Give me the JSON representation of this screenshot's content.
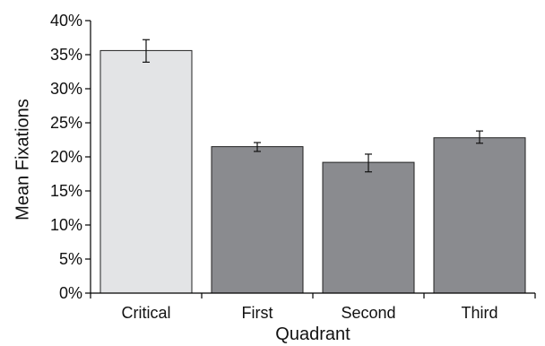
{
  "chart_data": {
    "type": "bar",
    "title": "",
    "xlabel": "Quadrant",
    "ylabel": "Mean Fixations",
    "categories": [
      "Critical",
      "First",
      "Second",
      "Third"
    ],
    "values": [
      35.6,
      21.5,
      19.2,
      22.8
    ],
    "error_low": [
      33.9,
      20.8,
      17.8,
      22.0
    ],
    "error_high": [
      37.2,
      22.1,
      20.4,
      23.8
    ],
    "value_format": "percent",
    "ylim": [
      0,
      40
    ],
    "yticks": [
      0,
      5,
      10,
      15,
      20,
      25,
      30,
      35,
      40
    ],
    "ytick_labels": [
      "0%",
      "5%",
      "10%",
      "15%",
      "20%",
      "25%",
      "30%",
      "35%",
      "40%"
    ],
    "bar_colors": [
      "#e3e4e6",
      "#8a8b8f",
      "#8a8b8f",
      "#8a8b8f"
    ],
    "grid": false,
    "legend": "none"
  }
}
